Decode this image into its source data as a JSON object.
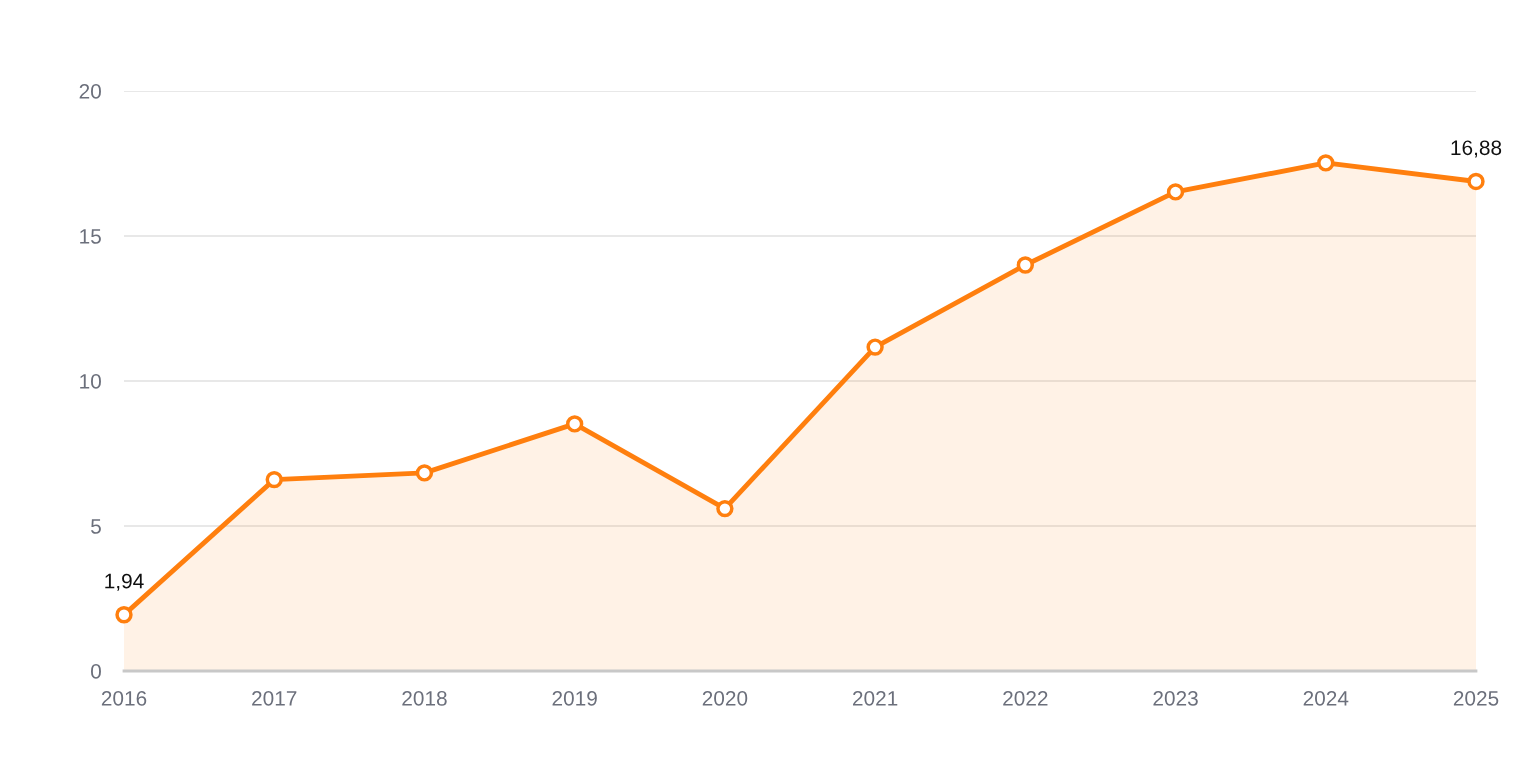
{
  "chart_data": {
    "type": "area",
    "categories": [
      "2016",
      "2017",
      "2018",
      "2019",
      "2020",
      "2021",
      "2022",
      "2023",
      "2024",
      "2025"
    ],
    "series": [
      {
        "color": "#ff7f0e",
        "values": [
          1.94,
          6.6,
          6.83,
          8.52,
          5.6,
          11.17,
          14.0,
          16.52,
          17.52,
          16.88
        ],
        "value_labels": [
          "1,94",
          null,
          null,
          null,
          null,
          null,
          null,
          null,
          null,
          "16,88"
        ]
      }
    ],
    "ylim": [
      0,
      20
    ],
    "yticks": [
      0,
      5,
      10,
      15,
      20
    ],
    "grid": "y",
    "marker": "circle",
    "line_style": "solid"
  }
}
